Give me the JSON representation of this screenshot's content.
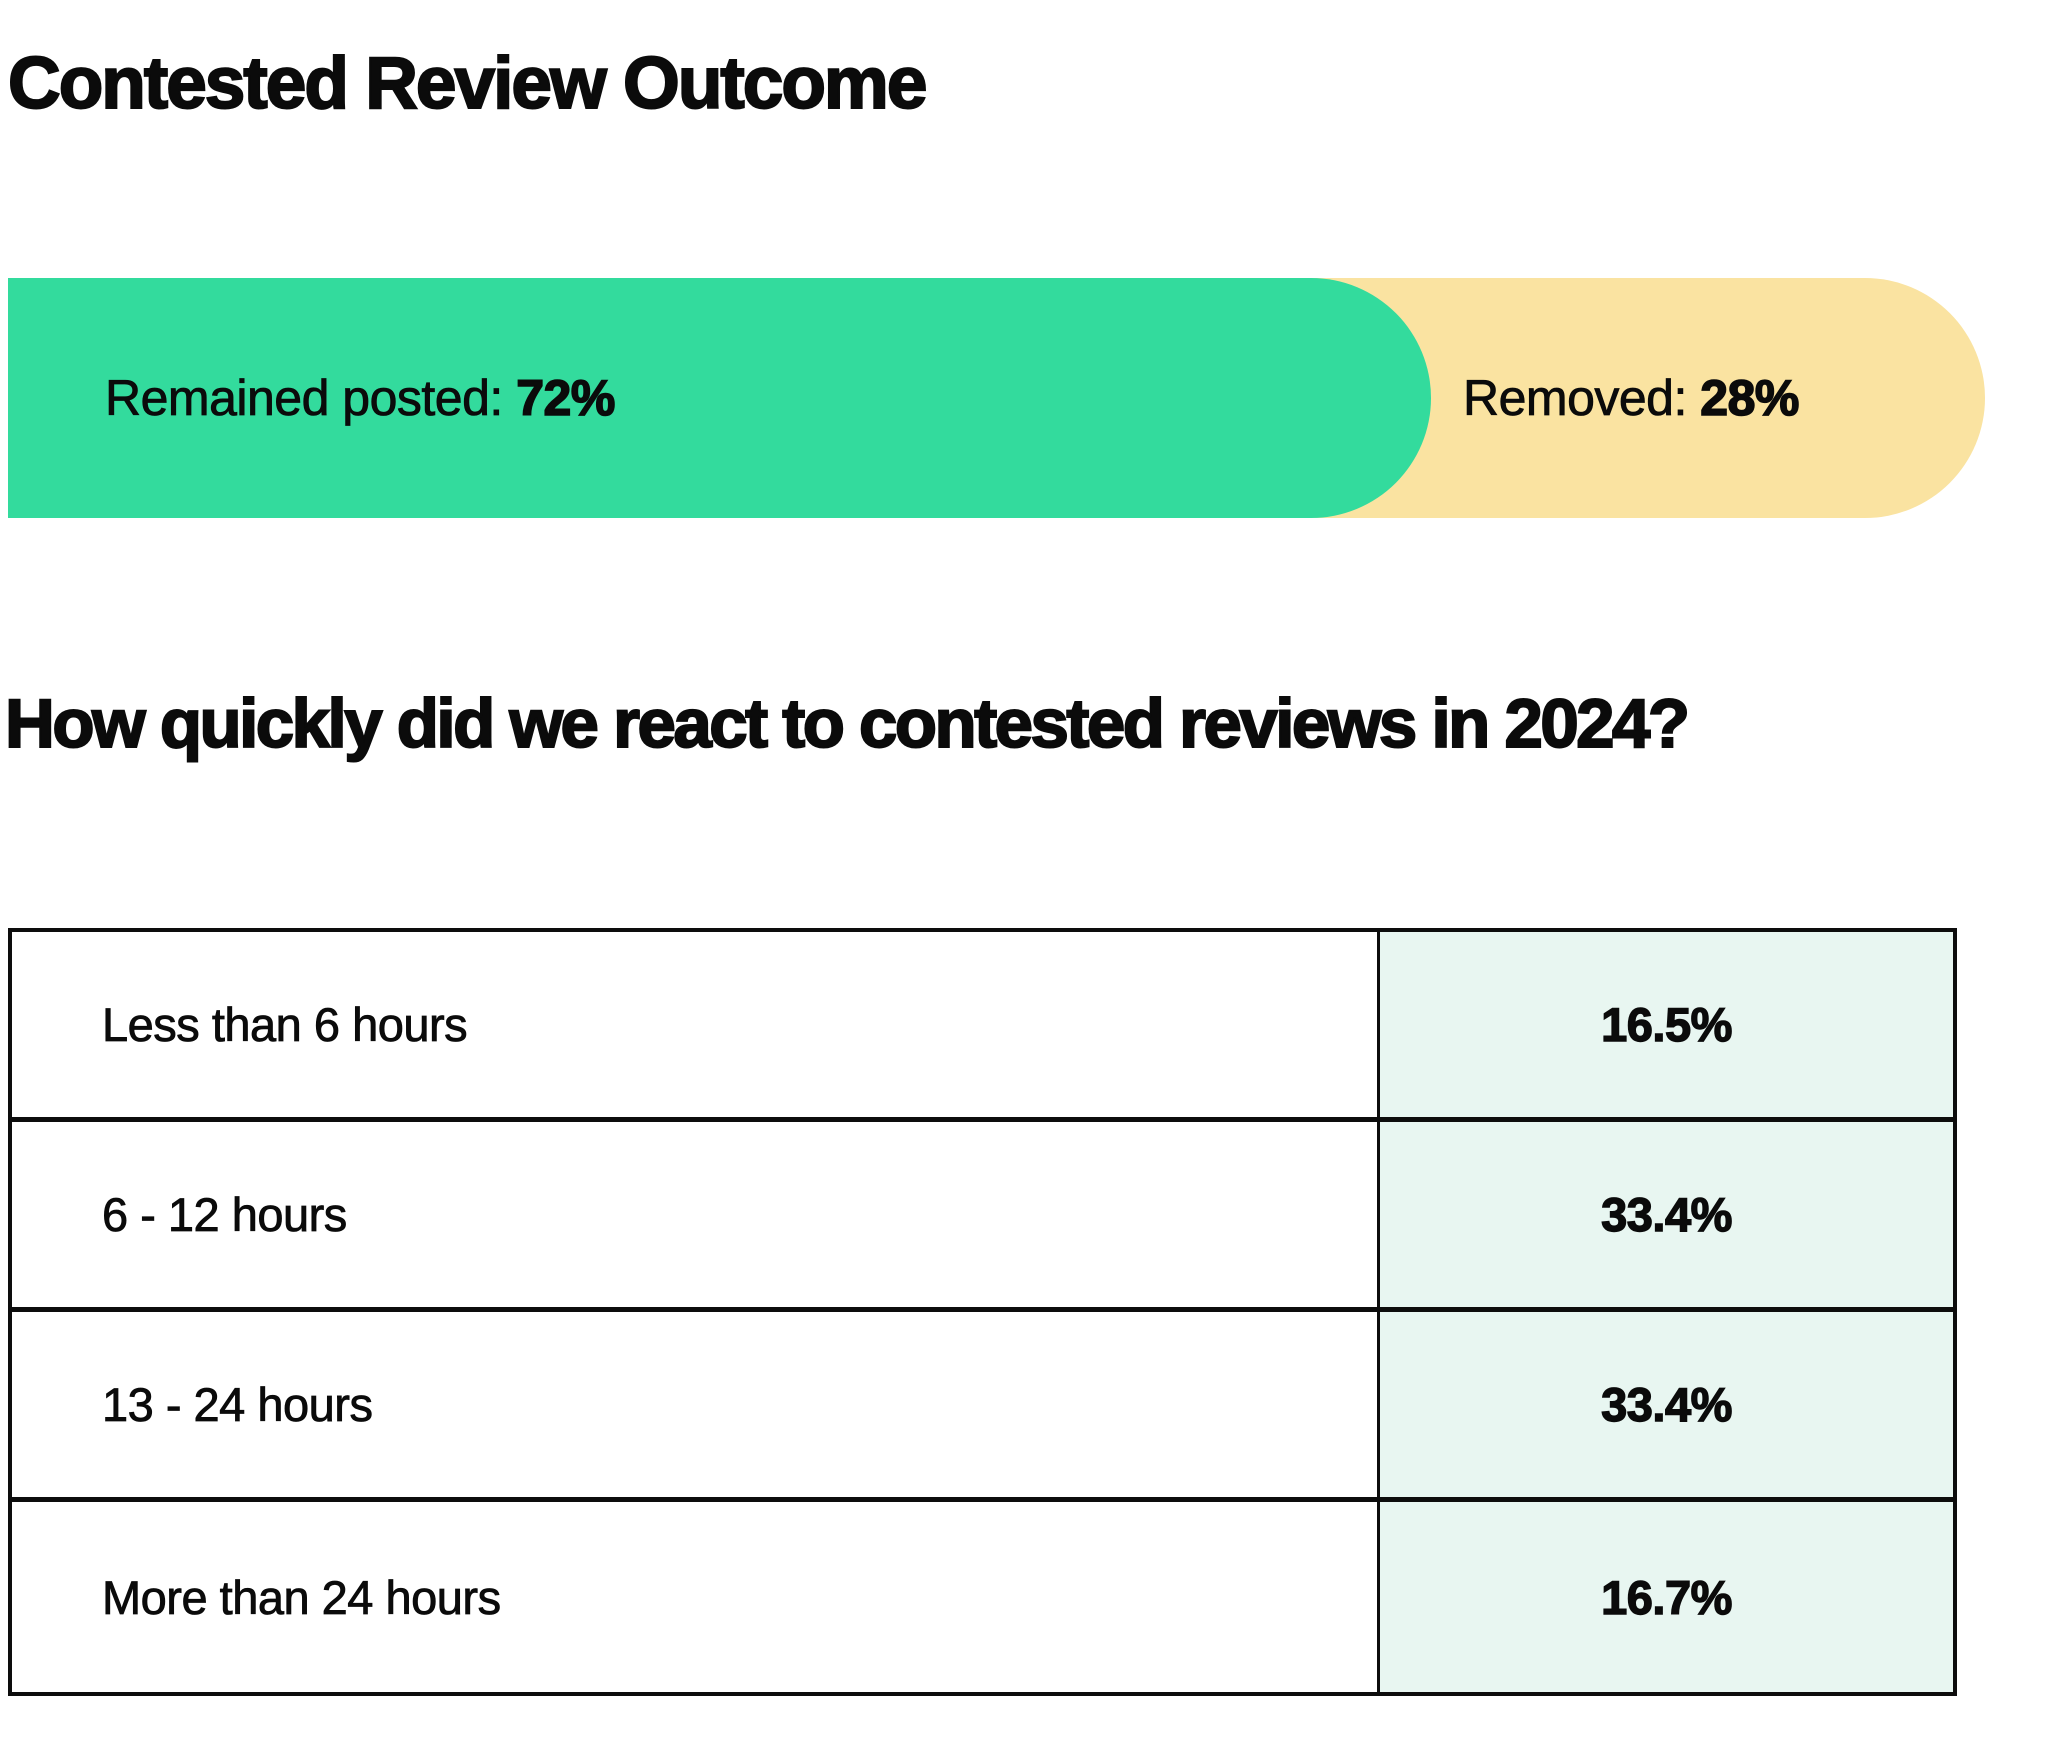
{
  "page": {
    "title": "Contested Review Outcome",
    "subtitle": "How quickly did we react to contested reviews in 2024?"
  },
  "bar": {
    "remained_label": "Remained posted: ",
    "remained_value": "72%",
    "removed_label": "Removed: ",
    "removed_value": "28%"
  },
  "table": {
    "rows": [
      {
        "label": "Less than 6 hours",
        "value": "16.5%"
      },
      {
        "label": "6 - 12 hours",
        "value": "33.4%"
      },
      {
        "label": "13 - 24 hours",
        "value": "33.4%"
      },
      {
        "label": "More than 24 hours",
        "value": "16.7%"
      }
    ]
  },
  "colors": {
    "green": "#33db9d",
    "yellow": "#fae3a1",
    "mint": "#e8f6f1",
    "text": "#0b0b0b",
    "border": "#0d0d0d"
  },
  "chart_data": [
    {
      "type": "bar",
      "title": "Contested Review Outcome",
      "orientation": "horizontal-stacked",
      "categories": [
        "Remained posted",
        "Removed"
      ],
      "values": [
        72,
        28
      ],
      "unit": "%",
      "segment_colors": [
        "#33db9d",
        "#fae3a1"
      ],
      "data_labels": [
        "Remained posted: 72%",
        "Removed: 28%"
      ],
      "axis": "none",
      "legend": "labels-inside-bar"
    },
    {
      "type": "table",
      "title": "How quickly did we react to contested reviews in 2024?",
      "categories": [
        "Less than 6 hours",
        "6 - 12 hours",
        "13 - 24 hours",
        "More than 24 hours"
      ],
      "values": [
        16.5,
        33.4,
        33.4,
        16.7
      ],
      "unit": "%",
      "value_column_background": "#e8f6f1",
      "grid": "on"
    }
  ]
}
